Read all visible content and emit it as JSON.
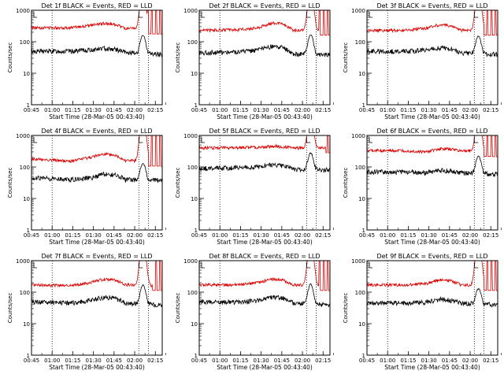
{
  "figure": {
    "y_axis_label": "Counts/sec",
    "x_axis_label": "Start Time (28-Mar-05 00:43:40)",
    "series_colors": {
      "events": "#000000",
      "lld": "#dd0000"
    },
    "x_tick_labels": [
      "00:45",
      "01:00",
      "01:15",
      "01:30",
      "01:45",
      "02:00",
      "02:15"
    ],
    "y_tick_labels": [
      "1",
      "10",
      "100",
      "1000"
    ]
  },
  "chart_data": [
    {
      "type": "line",
      "title": "Det 1f BLACK = Events, RED = LLD",
      "xlim": [
        "00:45",
        "02:20"
      ],
      "ylim": [
        1,
        1000
      ],
      "yscale": "log",
      "grid": false,
      "marker_lines": [
        "01:00",
        "02:03",
        "02:10"
      ],
      "events_base": 50,
      "lld_base": 280,
      "flare_peak_events": 160,
      "lld_saturated_after": "02:09",
      "events_trend": [
        [
          0,
          50
        ],
        [
          0.3,
          50
        ],
        [
          0.45,
          55
        ],
        [
          0.55,
          62
        ],
        [
          0.64,
          58
        ],
        [
          0.72,
          45
        ],
        [
          1,
          40
        ]
      ],
      "lld_trend": [
        [
          0,
          280
        ],
        [
          0.3,
          280
        ],
        [
          0.45,
          330
        ],
        [
          0.56,
          380
        ],
        [
          0.64,
          360
        ],
        [
          0.72,
          260
        ],
        [
          1,
          250
        ]
      ]
    },
    {
      "type": "line",
      "title": "Det 2f BLACK = Events, RED = LLD",
      "xlim": [
        "00:45",
        "02:20"
      ],
      "ylim": [
        1,
        1000
      ],
      "yscale": "log",
      "grid": false,
      "marker_lines": [
        "01:00",
        "02:03",
        "02:10"
      ],
      "events_base": 45,
      "lld_base": 230,
      "flare_peak_events": 170,
      "lld_saturated_after": "02:12",
      "events_trend": [
        [
          0,
          45
        ],
        [
          0.3,
          48
        ],
        [
          0.45,
          55
        ],
        [
          0.55,
          70
        ],
        [
          0.64,
          65
        ],
        [
          0.72,
          40
        ],
        [
          1,
          40
        ]
      ],
      "lld_trend": [
        [
          0,
          230
        ],
        [
          0.3,
          240
        ],
        [
          0.45,
          280
        ],
        [
          0.56,
          400
        ],
        [
          0.64,
          360
        ],
        [
          0.72,
          230
        ],
        [
          1,
          230
        ]
      ]
    },
    {
      "type": "line",
      "title": "Det 3f BLACK = Events, RED = LLD",
      "xlim": [
        "00:45",
        "02:20"
      ],
      "ylim": [
        1,
        1000
      ],
      "yscale": "log",
      "grid": false,
      "marker_lines": [
        "01:00",
        "02:03",
        "02:10"
      ],
      "events_base": 50,
      "lld_base": 230,
      "flare_peak_events": 150,
      "lld_saturated_after": "02:10",
      "events_trend": [
        [
          0,
          50
        ],
        [
          0.3,
          50
        ],
        [
          0.45,
          55
        ],
        [
          0.56,
          65
        ],
        [
          0.64,
          60
        ],
        [
          0.72,
          45
        ],
        [
          1,
          40
        ]
      ],
      "lld_trend": [
        [
          0,
          230
        ],
        [
          0.3,
          230
        ],
        [
          0.45,
          270
        ],
        [
          0.56,
          350
        ],
        [
          0.64,
          320
        ],
        [
          0.72,
          230
        ],
        [
          1,
          230
        ]
      ]
    },
    {
      "type": "line",
      "title": "Det 4f BLACK = Events, RED = LLD",
      "xlim": [
        "00:45",
        "02:20"
      ],
      "ylim": [
        1,
        1000
      ],
      "yscale": "log",
      "grid": false,
      "marker_lines": [
        "01:00",
        "02:03",
        "02:10"
      ],
      "events_base": 45,
      "lld_base": 180,
      "flare_peak_events": 130,
      "lld_saturated_after": "02:10",
      "events_trend": [
        [
          0,
          45
        ],
        [
          0.3,
          40
        ],
        [
          0.45,
          45
        ],
        [
          0.56,
          60
        ],
        [
          0.64,
          55
        ],
        [
          0.72,
          40
        ],
        [
          1,
          38
        ]
      ],
      "lld_trend": [
        [
          0,
          180
        ],
        [
          0.3,
          150
        ],
        [
          0.45,
          200
        ],
        [
          0.56,
          260
        ],
        [
          0.64,
          230
        ],
        [
          0.72,
          160
        ],
        [
          1,
          150
        ]
      ]
    },
    {
      "type": "line",
      "title": "Det 5f BLACK = Events, RED = LLD",
      "xlim": [
        "00:45",
        "02:20"
      ],
      "ylim": [
        1,
        1000
      ],
      "yscale": "log",
      "grid": false,
      "marker_lines": [
        "01:00",
        "02:03",
        "02:10"
      ],
      "events_base": 90,
      "lld_base": 400,
      "flare_peak_events": 280,
      "lld_saturated_after": "02:17",
      "events_trend": [
        [
          0,
          90
        ],
        [
          0.3,
          95
        ],
        [
          0.45,
          100
        ],
        [
          0.56,
          120
        ],
        [
          0.64,
          110
        ],
        [
          0.72,
          85
        ],
        [
          1,
          80
        ]
      ],
      "lld_trend": [
        [
          0,
          400
        ],
        [
          0.3,
          410
        ],
        [
          0.45,
          420
        ],
        [
          0.56,
          460
        ],
        [
          0.64,
          440
        ],
        [
          0.72,
          400
        ],
        [
          1,
          400
        ]
      ]
    },
    {
      "type": "line",
      "title": "Det 6f BLACK = Events, RED = LLD",
      "xlim": [
        "00:45",
        "02:20"
      ],
      "ylim": [
        1,
        1000
      ],
      "yscale": "log",
      "grid": false,
      "marker_lines": [
        "01:00",
        "02:03",
        "02:10"
      ],
      "events_base": 70,
      "lld_base": 330,
      "flare_peak_events": 220,
      "lld_saturated_after": "02:10",
      "events_trend": [
        [
          0,
          70
        ],
        [
          0.3,
          70
        ],
        [
          0.45,
          65
        ],
        [
          0.56,
          80
        ],
        [
          0.64,
          75
        ],
        [
          0.72,
          65
        ],
        [
          1,
          60
        ]
      ],
      "lld_trend": [
        [
          0,
          330
        ],
        [
          0.3,
          330
        ],
        [
          0.45,
          300
        ],
        [
          0.56,
          380
        ],
        [
          0.64,
          370
        ],
        [
          0.72,
          330
        ],
        [
          1,
          300
        ]
      ]
    },
    {
      "type": "line",
      "title": "Det 7f BLACK = Events, RED = LLD",
      "xlim": [
        "00:45",
        "02:20"
      ],
      "ylim": [
        1,
        1000
      ],
      "yscale": "log",
      "grid": false,
      "marker_lines": [
        "01:00",
        "02:03",
        "02:10"
      ],
      "events_base": 50,
      "lld_base": 170,
      "flare_peak_events": 170,
      "lld_saturated_after": "02:13",
      "events_trend": [
        [
          0,
          50
        ],
        [
          0.3,
          45
        ],
        [
          0.45,
          55
        ],
        [
          0.56,
          70
        ],
        [
          0.64,
          65
        ],
        [
          0.72,
          45
        ],
        [
          1,
          40
        ]
      ],
      "lld_trend": [
        [
          0,
          170
        ],
        [
          0.3,
          160
        ],
        [
          0.45,
          200
        ],
        [
          0.56,
          260
        ],
        [
          0.64,
          240
        ],
        [
          0.72,
          170
        ],
        [
          1,
          160
        ]
      ]
    },
    {
      "type": "line",
      "title": "Det 8f BLACK = Events, RED = LLD",
      "xlim": [
        "00:45",
        "02:20"
      ],
      "ylim": [
        1,
        1000
      ],
      "yscale": "log",
      "grid": false,
      "marker_lines": [
        "01:00",
        "02:03",
        "02:10"
      ],
      "events_base": 50,
      "lld_base": 170,
      "flare_peak_events": 180,
      "lld_saturated_after": "02:12",
      "events_trend": [
        [
          0,
          50
        ],
        [
          0.3,
          48
        ],
        [
          0.45,
          55
        ],
        [
          0.56,
          70
        ],
        [
          0.64,
          65
        ],
        [
          0.72,
          45
        ],
        [
          1,
          40
        ]
      ],
      "lld_trend": [
        [
          0,
          170
        ],
        [
          0.3,
          170
        ],
        [
          0.45,
          200
        ],
        [
          0.56,
          260
        ],
        [
          0.64,
          240
        ],
        [
          0.72,
          170
        ],
        [
          1,
          160
        ]
      ]
    },
    {
      "type": "line",
      "title": "Det 9f BLACK = Events, RED = LLD",
      "xlim": [
        "00:45",
        "02:20"
      ],
      "ylim": [
        1,
        1000
      ],
      "yscale": "log",
      "grid": false,
      "marker_lines": [
        "01:00",
        "02:03",
        "02:10"
      ],
      "events_base": 45,
      "lld_base": 170,
      "flare_peak_events": 130,
      "lld_saturated_after": "02:10",
      "events_trend": [
        [
          0,
          45
        ],
        [
          0.3,
          45
        ],
        [
          0.45,
          48
        ],
        [
          0.56,
          60
        ],
        [
          0.64,
          55
        ],
        [
          0.72,
          45
        ],
        [
          1,
          40
        ]
      ],
      "lld_trend": [
        [
          0,
          170
        ],
        [
          0.3,
          170
        ],
        [
          0.45,
          190
        ],
        [
          0.56,
          240
        ],
        [
          0.64,
          230
        ],
        [
          0.72,
          170
        ],
        [
          1,
          160
        ]
      ]
    }
  ]
}
